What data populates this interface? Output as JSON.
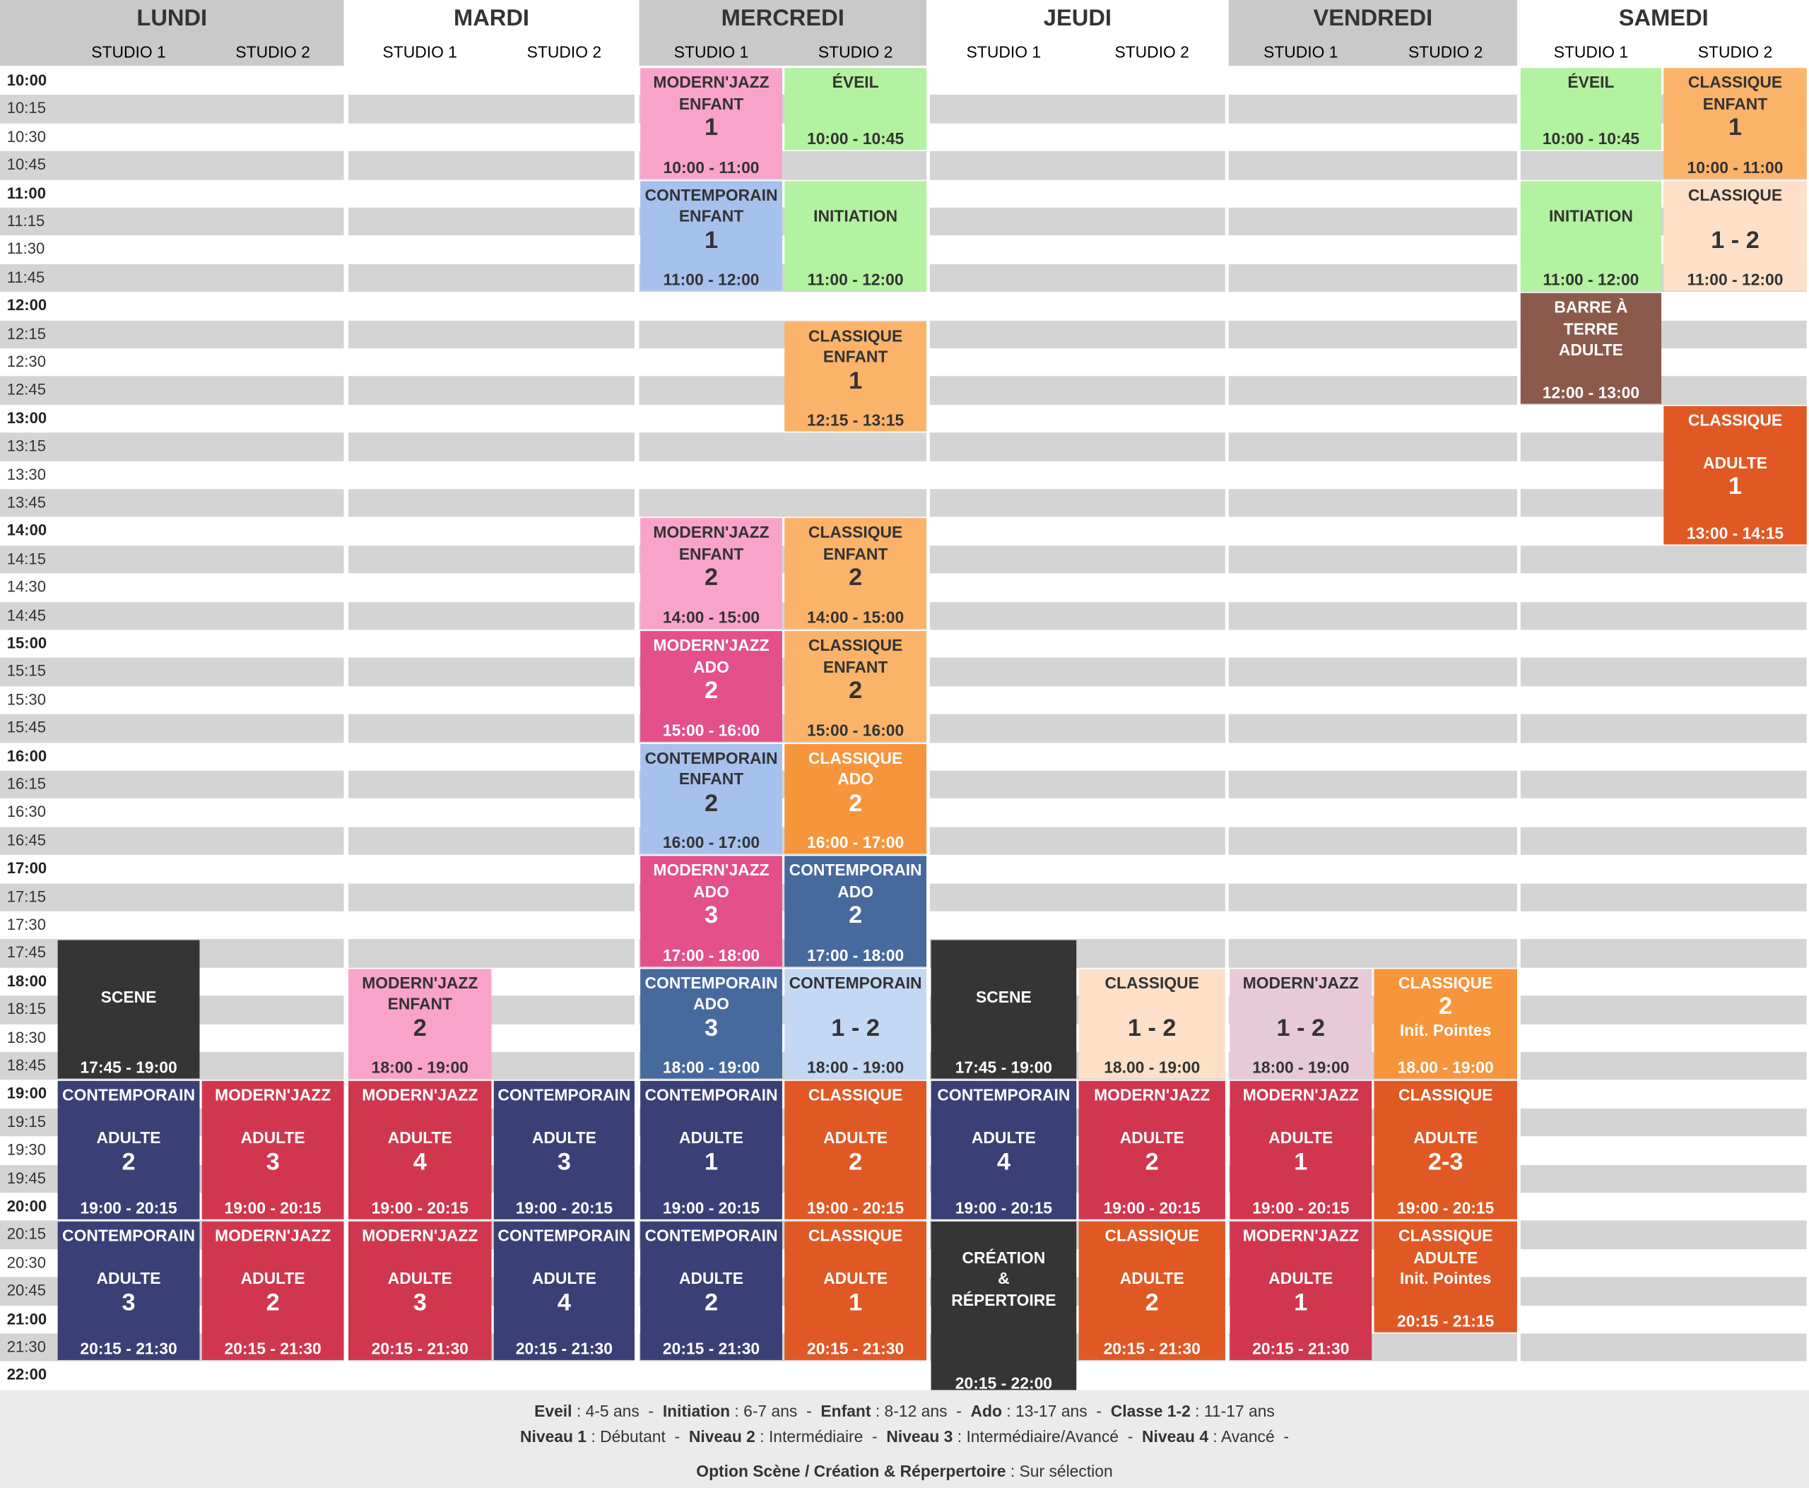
{
  "days": [
    {
      "name": "LUNDI",
      "studios": [
        "STUDIO 1",
        "STUDIO 2"
      ]
    },
    {
      "name": "MARDI",
      "studios": [
        "STUDIO 1",
        "STUDIO 2"
      ]
    },
    {
      "name": "MERCREDI",
      "studios": [
        "STUDIO 1",
        "STUDIO 2"
      ]
    },
    {
      "name": "JEUDI",
      "studios": [
        "STUDIO 1",
        "STUDIO 2"
      ]
    },
    {
      "name": "VENDREDI",
      "studios": [
        "STUDIO 1",
        "STUDIO 2"
      ]
    },
    {
      "name": "SAMEDI",
      "studios": [
        "STUDIO 1",
        "STUDIO 2"
      ]
    }
  ],
  "time_labels": [
    "10:00",
    "10:15",
    "10:30",
    "10:45",
    "11:00",
    "11:15",
    "11:30",
    "11:45",
    "12:00",
    "12:15",
    "12:30",
    "12:45",
    "13:00",
    "13:15",
    "13:30",
    "13:45",
    "14:00",
    "14:15",
    "14:30",
    "14:45",
    "15:00",
    "15:15",
    "15:30",
    "15:45",
    "16:00",
    "16:15",
    "16:30",
    "16:45",
    "17:00",
    "17:15",
    "17:30",
    "17:45",
    "18:00",
    "18:15",
    "18:30",
    "18:45",
    "19:00",
    "19:15",
    "19:30",
    "19:45",
    "20:00",
    "20:15",
    "20:30",
    "20:45",
    "21:00",
    "21:30",
    "22:00"
  ],
  "colors": {
    "pink": [
      "#f9a3cb",
      "#333333"
    ],
    "green": [
      "#b3f2a0",
      "#333333"
    ],
    "lightblue": [
      "#a6c1ec",
      "#333333"
    ],
    "lightorange": [
      "#fbb36a",
      "#333333"
    ],
    "orange": [
      "#f7953d",
      "#ffffff"
    ],
    "hotpink": [
      "#e4508a",
      "#ffffff"
    ],
    "steelblue": [
      "#46699e",
      "#ffffff"
    ],
    "paleblue": [
      "#c3d8f3",
      "#333333"
    ],
    "dark": [
      "#353535",
      "#ffffff"
    ],
    "peach": [
      "#fde0c7",
      "#333333"
    ],
    "mauve": [
      "#e6cad8",
      "#333333"
    ],
    "navy": [
      "#3a3f75",
      "#ffffff"
    ],
    "red": [
      "#d1364f",
      "#ffffff"
    ],
    "orangered": [
      "#e05925",
      "#ffffff"
    ],
    "brown": [
      "#8b5a4a",
      "#ffffff"
    ]
  },
  "events": [
    {
      "day": 0,
      "studio": 0,
      "start": "17:45",
      "end": "19:00",
      "color": "dark",
      "lines": [
        {
          "t": ""
        },
        {
          "t": ""
        },
        {
          "t": "SCENE"
        }
      ],
      "time": "17:45 - 19:00"
    },
    {
      "day": 0,
      "studio": 0,
      "start": "19:00",
      "end": "20:15",
      "color": "navy",
      "lines": [
        {
          "t": "CONTEMPORAIN"
        },
        {
          "t": ""
        },
        {
          "t": "ADULTE"
        },
        {
          "n": "2"
        }
      ],
      "time": "19:00 - 20:15"
    },
    {
      "day": 0,
      "studio": 1,
      "start": "19:00",
      "end": "20:15",
      "color": "red",
      "lines": [
        {
          "t": "MODERN'JAZZ"
        },
        {
          "t": ""
        },
        {
          "t": "ADULTE"
        },
        {
          "n": "3"
        }
      ],
      "time": "19:00 - 20:15"
    },
    {
      "day": 0,
      "studio": 0,
      "start": "20:15",
      "end": "21:30",
      "color": "navy",
      "lines": [
        {
          "t": "CONTEMPORAIN"
        },
        {
          "t": ""
        },
        {
          "t": "ADULTE"
        },
        {
          "n": "3"
        }
      ],
      "time": "20:15 - 21:30"
    },
    {
      "day": 0,
      "studio": 1,
      "start": "20:15",
      "end": "21:30",
      "color": "red",
      "lines": [
        {
          "t": "MODERN'JAZZ"
        },
        {
          "t": ""
        },
        {
          "t": "ADULTE"
        },
        {
          "n": "2"
        }
      ],
      "time": "20:15 - 21:30"
    },
    {
      "day": 1,
      "studio": 0,
      "start": "18:00",
      "end": "19:00",
      "color": "pink",
      "lines": [
        {
          "t": "MODERN'JAZZ"
        },
        {
          "t": "ENFANT"
        },
        {
          "n": "2"
        }
      ],
      "time": "18:00 - 19:00"
    },
    {
      "day": 1,
      "studio": 0,
      "start": "19:00",
      "end": "20:15",
      "color": "red",
      "lines": [
        {
          "t": "MODERN'JAZZ"
        },
        {
          "t": ""
        },
        {
          "t": "ADULTE"
        },
        {
          "n": "4"
        }
      ],
      "time": "19:00 - 20:15"
    },
    {
      "day": 1,
      "studio": 1,
      "start": "19:00",
      "end": "20:15",
      "color": "navy",
      "lines": [
        {
          "t": "CONTEMPORAIN"
        },
        {
          "t": ""
        },
        {
          "t": "ADULTE"
        },
        {
          "n": "3"
        }
      ],
      "time": "19:00 - 20:15"
    },
    {
      "day": 1,
      "studio": 0,
      "start": "20:15",
      "end": "21:30",
      "color": "red",
      "lines": [
        {
          "t": "MODERN'JAZZ"
        },
        {
          "t": ""
        },
        {
          "t": "ADULTE"
        },
        {
          "n": "3"
        }
      ],
      "time": "20:15 - 21:30"
    },
    {
      "day": 1,
      "studio": 1,
      "start": "20:15",
      "end": "21:30",
      "color": "navy",
      "lines": [
        {
          "t": "CONTEMPORAIN"
        },
        {
          "t": ""
        },
        {
          "t": "ADULTE"
        },
        {
          "n": "4"
        }
      ],
      "time": "20:15 - 21:30"
    },
    {
      "day": 2,
      "studio": 0,
      "start": "10:00",
      "end": "11:00",
      "color": "pink",
      "lines": [
        {
          "t": "MODERN'JAZZ"
        },
        {
          "t": "ENFANT"
        },
        {
          "n": "1"
        }
      ],
      "time": "10:00 - 11:00"
    },
    {
      "day": 2,
      "studio": 1,
      "start": "10:00",
      "end": "10:45",
      "color": "green",
      "lines": [
        {
          "t": "ÉVEIL"
        }
      ],
      "time": "10:00 - 10:45"
    },
    {
      "day": 2,
      "studio": 0,
      "start": "11:00",
      "end": "12:00",
      "color": "lightblue",
      "lines": [
        {
          "t": "CONTEMPORAIN"
        },
        {
          "t": "ENFANT"
        },
        {
          "n": "1"
        }
      ],
      "time": "11:00 - 12:00"
    },
    {
      "day": 2,
      "studio": 1,
      "start": "11:00",
      "end": "12:00",
      "color": "green",
      "lines": [
        {
          "t": ""
        },
        {
          "t": "INITIATION"
        }
      ],
      "time": "11:00 - 12:00"
    },
    {
      "day": 2,
      "studio": 1,
      "start": "12:15",
      "end": "13:15",
      "color": "lightorange",
      "lines": [
        {
          "t": "CLASSIQUE"
        },
        {
          "t": "ENFANT"
        },
        {
          "n": "1"
        }
      ],
      "time": "12:15 - 13:15"
    },
    {
      "day": 2,
      "studio": 0,
      "start": "14:00",
      "end": "15:00",
      "color": "pink",
      "lines": [
        {
          "t": "MODERN'JAZZ"
        },
        {
          "t": "ENFANT"
        },
        {
          "n": "2"
        }
      ],
      "time": "14:00 - 15:00"
    },
    {
      "day": 2,
      "studio": 1,
      "start": "14:00",
      "end": "15:00",
      "color": "lightorange",
      "lines": [
        {
          "t": "CLASSIQUE"
        },
        {
          "t": "ENFANT"
        },
        {
          "n": "2"
        }
      ],
      "time": "14:00 - 15:00"
    },
    {
      "day": 2,
      "studio": 0,
      "start": "15:00",
      "end": "16:00",
      "color": "hotpink",
      "lines": [
        {
          "t": "MODERN'JAZZ"
        },
        {
          "t": "ADO"
        },
        {
          "n": "2"
        }
      ],
      "time": "15:00 - 16:00"
    },
    {
      "day": 2,
      "studio": 1,
      "start": "15:00",
      "end": "16:00",
      "color": "lightorange",
      "lines": [
        {
          "t": "CLASSIQUE"
        },
        {
          "t": "ENFANT"
        },
        {
          "n": "2"
        }
      ],
      "time": "15:00 - 16:00"
    },
    {
      "day": 2,
      "studio": 0,
      "start": "16:00",
      "end": "17:00",
      "color": "lightblue",
      "lines": [
        {
          "t": "CONTEMPORAIN"
        },
        {
          "t": "ENFANT"
        },
        {
          "n": "2"
        }
      ],
      "time": "16:00 - 17:00"
    },
    {
      "day": 2,
      "studio": 1,
      "start": "16:00",
      "end": "17:00",
      "color": "orange",
      "lines": [
        {
          "t": "CLASSIQUE"
        },
        {
          "t": "ADO"
        },
        {
          "n": "2"
        }
      ],
      "time": "16:00 - 17:00"
    },
    {
      "day": 2,
      "studio": 0,
      "start": "17:00",
      "end": "18:00",
      "color": "hotpink",
      "lines": [
        {
          "t": "MODERN'JAZZ"
        },
        {
          "t": "ADO"
        },
        {
          "n": "3"
        }
      ],
      "time": "17:00 - 18:00"
    },
    {
      "day": 2,
      "studio": 1,
      "start": "17:00",
      "end": "18:00",
      "color": "steelblue",
      "lines": [
        {
          "t": "CONTEMPORAIN"
        },
        {
          "t": "ADO"
        },
        {
          "n": "2"
        }
      ],
      "time": "17:00 - 18:00"
    },
    {
      "day": 2,
      "studio": 0,
      "start": "18:00",
      "end": "19:00",
      "color": "steelblue",
      "lines": [
        {
          "t": "CONTEMPORAIN"
        },
        {
          "t": "ADO"
        },
        {
          "n": "3"
        }
      ],
      "time": "18:00 - 19:00"
    },
    {
      "day": 2,
      "studio": 1,
      "start": "18:00",
      "end": "19:00",
      "color": "paleblue",
      "lines": [
        {
          "t": "CONTEMPORAIN"
        },
        {
          "t": ""
        },
        {
          "n": "1 - 2"
        }
      ],
      "time": "18:00 - 19:00"
    },
    {
      "day": 2,
      "studio": 0,
      "start": "19:00",
      "end": "20:15",
      "color": "navy",
      "lines": [
        {
          "t": "CONTEMPORAIN"
        },
        {
          "t": ""
        },
        {
          "t": "ADULTE"
        },
        {
          "n": "1"
        }
      ],
      "time": "19:00 - 20:15"
    },
    {
      "day": 2,
      "studio": 1,
      "start": "19:00",
      "end": "20:15",
      "color": "orangered",
      "lines": [
        {
          "t": "CLASSIQUE"
        },
        {
          "t": ""
        },
        {
          "t": "ADULTE"
        },
        {
          "n": "2"
        }
      ],
      "time": "19:00 - 20:15"
    },
    {
      "day": 2,
      "studio": 0,
      "start": "20:15",
      "end": "21:30",
      "color": "navy",
      "lines": [
        {
          "t": "CONTEMPORAIN"
        },
        {
          "t": ""
        },
        {
          "t": "ADULTE"
        },
        {
          "n": "2"
        }
      ],
      "time": "20:15 - 21:30"
    },
    {
      "day": 2,
      "studio": 1,
      "start": "20:15",
      "end": "21:30",
      "color": "orangered",
      "lines": [
        {
          "t": "CLASSIQUE"
        },
        {
          "t": ""
        },
        {
          "t": "ADULTE"
        },
        {
          "n": "1"
        }
      ],
      "time": "20:15 - 21:30"
    },
    {
      "day": 3,
      "studio": 0,
      "start": "17:45",
      "end": "19:00",
      "color": "dark",
      "lines": [
        {
          "t": ""
        },
        {
          "t": ""
        },
        {
          "t": "SCENE"
        }
      ],
      "time": "17:45 - 19:00"
    },
    {
      "day": 3,
      "studio": 1,
      "start": "18:00",
      "end": "19:00",
      "color": "peach",
      "lines": [
        {
          "t": "CLASSIQUE"
        },
        {
          "t": ""
        },
        {
          "n": "1 - 2"
        }
      ],
      "time": "18.00 - 19:00"
    },
    {
      "day": 3,
      "studio": 0,
      "start": "19:00",
      "end": "20:15",
      "color": "navy",
      "lines": [
        {
          "t": "CONTEMPORAIN"
        },
        {
          "t": ""
        },
        {
          "t": "ADULTE"
        },
        {
          "n": "4"
        }
      ],
      "time": "19:00 - 20:15"
    },
    {
      "day": 3,
      "studio": 1,
      "start": "19:00",
      "end": "20:15",
      "color": "red",
      "lines": [
        {
          "t": "MODERN'JAZZ"
        },
        {
          "t": ""
        },
        {
          "t": "ADULTE"
        },
        {
          "n": "2"
        }
      ],
      "time": "19:00 - 20:15"
    },
    {
      "day": 3,
      "studio": 0,
      "start": "20:15",
      "end": "22:00",
      "color": "dark",
      "lines": [
        {
          "t": ""
        },
        {
          "t": "CRÉATION"
        },
        {
          "t": "&"
        },
        {
          "t": "RÉPERTOIRE"
        }
      ],
      "time": "20:15 - 22:00"
    },
    {
      "day": 3,
      "studio": 1,
      "start": "20:15",
      "end": "21:30",
      "color": "orangered",
      "lines": [
        {
          "t": "CLASSIQUE"
        },
        {
          "t": ""
        },
        {
          "t": "ADULTE"
        },
        {
          "n": "2"
        }
      ],
      "time": "20:15 - 21:30"
    },
    {
      "day": 4,
      "studio": 0,
      "start": "18:00",
      "end": "19:00",
      "color": "mauve",
      "lines": [
        {
          "t": "MODERN'JAZZ"
        },
        {
          "t": ""
        },
        {
          "n": "1 - 2"
        }
      ],
      "time": "18:00 - 19:00"
    },
    {
      "day": 4,
      "studio": 1,
      "start": "18:00",
      "end": "19:00",
      "color": "orange",
      "lines": [
        {
          "t": "CLASSIQUE"
        },
        {
          "n": "2"
        },
        {
          "t": "Init. Pointes"
        }
      ],
      "time": "18.00 - 19:00"
    },
    {
      "day": 4,
      "studio": 0,
      "start": "19:00",
      "end": "20:15",
      "color": "red",
      "lines": [
        {
          "t": "MODERN'JAZZ"
        },
        {
          "t": ""
        },
        {
          "t": "ADULTE"
        },
        {
          "n": "1"
        }
      ],
      "time": "19:00 - 20:15"
    },
    {
      "day": 4,
      "studio": 1,
      "start": "19:00",
      "end": "20:15",
      "color": "orangered",
      "lines": [
        {
          "t": "CLASSIQUE"
        },
        {
          "t": ""
        },
        {
          "t": "ADULTE"
        },
        {
          "n": "2-3"
        }
      ],
      "time": "19:00 - 20:15"
    },
    {
      "day": 4,
      "studio": 0,
      "start": "20:15",
      "end": "21:30",
      "color": "red",
      "lines": [
        {
          "t": "MODERN'JAZZ"
        },
        {
          "t": ""
        },
        {
          "t": "ADULTE"
        },
        {
          "n": "1"
        }
      ],
      "time": "20:15 - 21:30"
    },
    {
      "day": 4,
      "studio": 1,
      "start": "20:15",
      "end": "21:15",
      "color": "orangered",
      "lines": [
        {
          "t": "CLASSIQUE"
        },
        {
          "t": "ADULTE"
        },
        {
          "t": "Init. Pointes"
        }
      ],
      "time": "20:15 - 21:15"
    },
    {
      "day": 5,
      "studio": 0,
      "start": "10:00",
      "end": "10:45",
      "color": "green",
      "lines": [
        {
          "t": "ÉVEIL"
        }
      ],
      "time": "10:00 - 10:45"
    },
    {
      "day": 5,
      "studio": 1,
      "start": "10:00",
      "end": "11:00",
      "color": "lightorange",
      "lines": [
        {
          "t": "CLASSIQUE"
        },
        {
          "t": "ENFANT"
        },
        {
          "n": "1"
        }
      ],
      "time": "10:00 - 11:00"
    },
    {
      "day": 5,
      "studio": 0,
      "start": "11:00",
      "end": "12:00",
      "color": "green",
      "lines": [
        {
          "t": ""
        },
        {
          "t": "INITIATION"
        }
      ],
      "time": "11:00 - 12:00"
    },
    {
      "day": 5,
      "studio": 1,
      "start": "11:00",
      "end": "12:00",
      "color": "peach",
      "lines": [
        {
          "t": "CLASSIQUE"
        },
        {
          "t": ""
        },
        {
          "n": "1 - 2"
        }
      ],
      "time": "11:00 - 12:00"
    },
    {
      "day": 5,
      "studio": 0,
      "start": "12:00",
      "end": "13:00",
      "color": "brown",
      "lines": [
        {
          "t": "BARRE À"
        },
        {
          "t": "TERRE"
        },
        {
          "t": "ADULTE"
        }
      ],
      "time": "12:00 - 13:00"
    },
    {
      "day": 5,
      "studio": 1,
      "start": "13:00",
      "end": "14:15",
      "color": "orangered",
      "lines": [
        {
          "t": "CLASSIQUE"
        },
        {
          "t": ""
        },
        {
          "t": "ADULTE"
        },
        {
          "n": "1"
        }
      ],
      "time": "13:00 - 14:15"
    }
  ],
  "legend": [
    [
      {
        "b": "Eveil",
        "r": " : 4-5 ans  -  "
      },
      {
        "b": "Initiation",
        "r": " : 6-7 ans  -  "
      },
      {
        "b": "Enfant",
        "r": " : 8-12 ans  -  "
      },
      {
        "b": "Ado",
        "r": " : 13-17 ans  -  "
      },
      {
        "b": "Classe 1-2",
        "r": " : 11-17 ans"
      }
    ],
    [
      {
        "b": "Niveau 1",
        "r": " : Débutant  -  "
      },
      {
        "b": "Niveau 2",
        "r": " : Intermédiaire  -  "
      },
      {
        "b": "Niveau 3",
        "r": " : Intermédiaire/Avancé  -  "
      },
      {
        "b": "Niveau 4",
        "r": " : Avancé  -"
      }
    ],
    [
      {
        "b": "Option Scène / Création & Réperpertoire",
        "r": " : Sur sélection"
      }
    ]
  ]
}
